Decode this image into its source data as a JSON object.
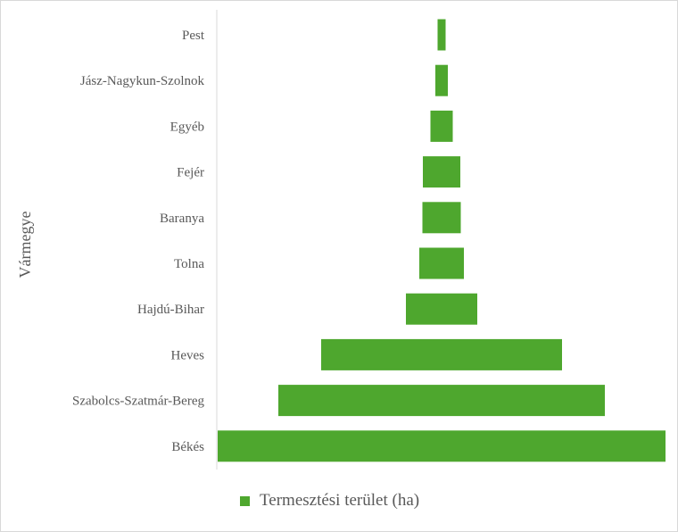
{
  "chart_data": {
    "type": "bar",
    "orientation": "horizontal",
    "layout": "centered-funnel",
    "ylabel": "Vármegye",
    "xlabel": "",
    "categories": [
      "Pest",
      "Jász-Nagykun-Szolnok",
      "Egyéb",
      "Fejér",
      "Baranya",
      "Tolna",
      "Hajdú-Bihar",
      "Heves",
      "Szabolcs-Szatmár-Bereg",
      "Békés"
    ],
    "series": [
      {
        "name": "Termesztési terület (ha)",
        "color": "#4ea72e",
        "values": [
          9,
          14,
          25,
          42,
          43,
          50,
          80,
          270,
          366,
          502
        ]
      }
    ],
    "xlim": [
      0,
      502
    ],
    "grid": false,
    "legend_position": "bottom"
  }
}
